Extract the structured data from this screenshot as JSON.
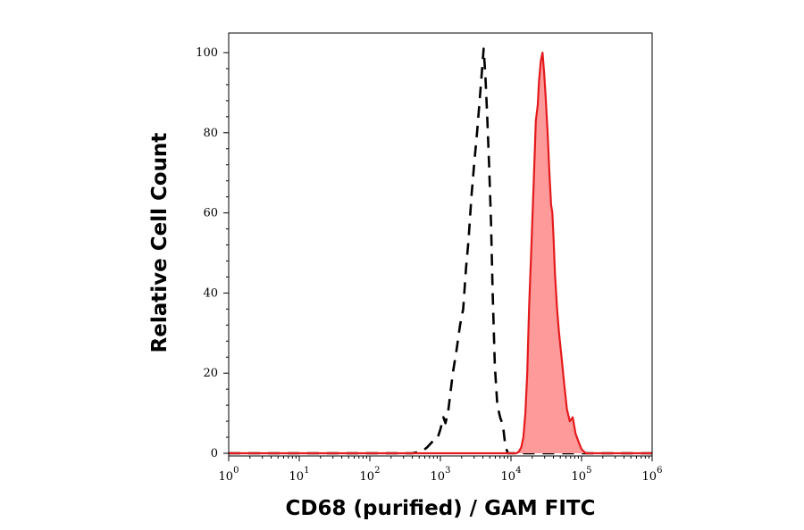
{
  "chart_data": {
    "type": "area",
    "xlabel": "CD68 (purified) / GAM FITC",
    "ylabel": "Relative Cell Count",
    "x_scale": "log",
    "xlim": [
      1,
      1000000
    ],
    "ylim": [
      0,
      100
    ],
    "x_ticks": [
      {
        "base": "10",
        "exp": "0",
        "value": 1
      },
      {
        "base": "10",
        "exp": "1",
        "value": 10
      },
      {
        "base": "10",
        "exp": "2",
        "value": 100
      },
      {
        "base": "10",
        "exp": "3",
        "value": 1000
      },
      {
        "base": "10",
        "exp": "4",
        "value": 10000
      },
      {
        "base": "10",
        "exp": "5",
        "value": 100000
      },
      {
        "base": "10",
        "exp": "6",
        "value": 1000000
      }
    ],
    "y_ticks": [
      "0",
      "20",
      "40",
      "60",
      "80",
      "100"
    ],
    "grid": false,
    "legend": "none",
    "series": [
      {
        "style": "dashed",
        "color": "#000000",
        "fill": "none",
        "points": [
          [
            1,
            0
          ],
          [
            400,
            0
          ],
          [
            550,
            0.5
          ],
          [
            650,
            1.5
          ],
          [
            780,
            3
          ],
          [
            900,
            3.5
          ],
          [
            1000,
            6
          ],
          [
            1100,
            9
          ],
          [
            1180,
            7.5
          ],
          [
            1300,
            11
          ],
          [
            1500,
            20
          ],
          [
            1700,
            26
          ],
          [
            1900,
            32
          ],
          [
            2100,
            36
          ],
          [
            2300,
            46
          ],
          [
            2500,
            53
          ],
          [
            2750,
            64
          ],
          [
            3000,
            72
          ],
          [
            3300,
            80
          ],
          [
            3600,
            88
          ],
          [
            3900,
            96
          ],
          [
            4100,
            101
          ],
          [
            4350,
            94
          ],
          [
            4600,
            84
          ],
          [
            4900,
            72
          ],
          [
            5200,
            58
          ],
          [
            5500,
            40
          ],
          [
            5900,
            22
          ],
          [
            6400,
            12
          ],
          [
            7000,
            9
          ],
          [
            7700,
            7
          ],
          [
            8300,
            2
          ],
          [
            9000,
            0
          ],
          [
            1000000,
            0
          ]
        ]
      },
      {
        "style": "solid",
        "color": "#e41a1c",
        "fill": "#ff9a9a",
        "points": [
          [
            1,
            0
          ],
          [
            12000,
            0
          ],
          [
            13000,
            0.5
          ],
          [
            14000,
            1.5
          ],
          [
            15000,
            4
          ],
          [
            16000,
            10
          ],
          [
            17000,
            20
          ],
          [
            18000,
            36
          ],
          [
            19500,
            52
          ],
          [
            21000,
            68
          ],
          [
            22500,
            83
          ],
          [
            24000,
            87
          ],
          [
            25000,
            93
          ],
          [
            26500,
            98
          ],
          [
            28000,
            100
          ],
          [
            29500,
            95
          ],
          [
            31000,
            89
          ],
          [
            33000,
            80
          ],
          [
            35000,
            70
          ],
          [
            37000,
            62
          ],
          [
            38500,
            60
          ],
          [
            40000,
            54
          ],
          [
            42000,
            45
          ],
          [
            45000,
            36
          ],
          [
            48000,
            30
          ],
          [
            52000,
            24
          ],
          [
            57000,
            17
          ],
          [
            62000,
            11
          ],
          [
            68000,
            8
          ],
          [
            75000,
            9
          ],
          [
            82000,
            5
          ],
          [
            90000,
            3
          ],
          [
            100000,
            1
          ],
          [
            115000,
            0
          ],
          [
            1000000,
            0
          ]
        ]
      }
    ]
  }
}
